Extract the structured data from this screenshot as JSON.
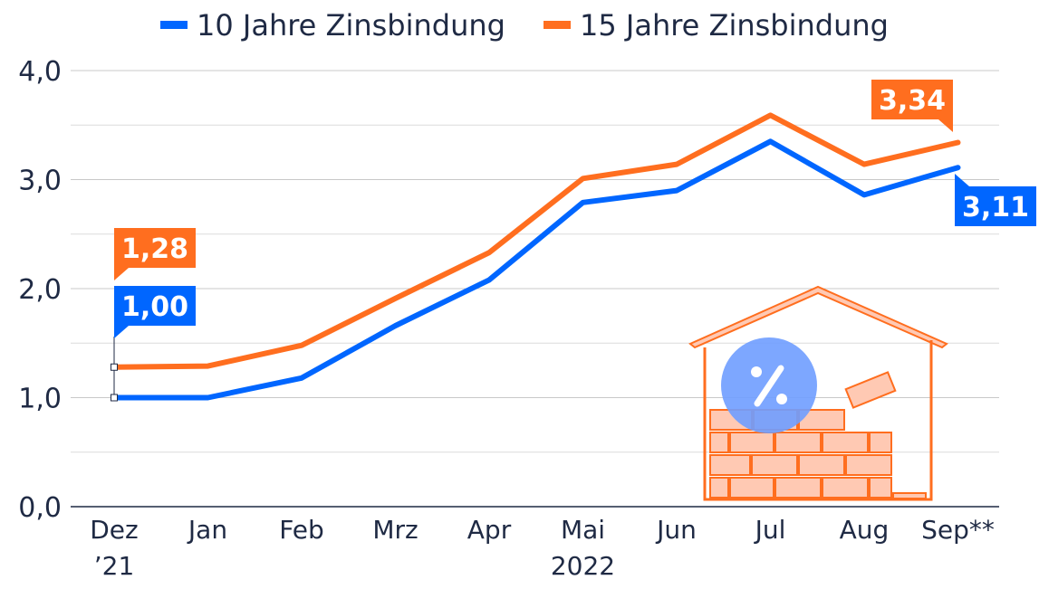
{
  "chart_data": {
    "type": "line",
    "categories": [
      "Dez",
      "Jan",
      "Feb",
      "Mrz",
      "Apr",
      "Mai",
      "Jun",
      "Jul",
      "Aug",
      "Sep**"
    ],
    "category_sublabels": [
      {
        "index": 0,
        "text": "’21"
      },
      {
        "index": 5,
        "text": "2022"
      }
    ],
    "series": [
      {
        "name": "10 Jahre Zinsbindung",
        "color": "#0066ff",
        "values": [
          1.0,
          1.0,
          1.18,
          1.66,
          2.08,
          2.79,
          2.9,
          3.35,
          2.86,
          3.11
        ]
      },
      {
        "name": "15 Jahre Zinsbindung",
        "color": "#ff6e1f",
        "values": [
          1.28,
          1.29,
          1.48,
          1.91,
          2.33,
          3.01,
          3.14,
          3.59,
          3.14,
          3.34
        ]
      }
    ],
    "data_labels": [
      {
        "series": 1,
        "index": 0,
        "text": "1,28"
      },
      {
        "series": 0,
        "index": 0,
        "text": "1,00"
      },
      {
        "series": 1,
        "index": 9,
        "text": "3,34"
      },
      {
        "series": 0,
        "index": 9,
        "text": "3,11"
      }
    ],
    "y_ticks": [
      "0,0",
      "1,0",
      "2,0",
      "3,0",
      "4,0"
    ],
    "ylim": [
      0,
      4
    ],
    "grid": true,
    "legend_position": "top",
    "illustration": "house-with-bricks-and-percent-icon"
  }
}
